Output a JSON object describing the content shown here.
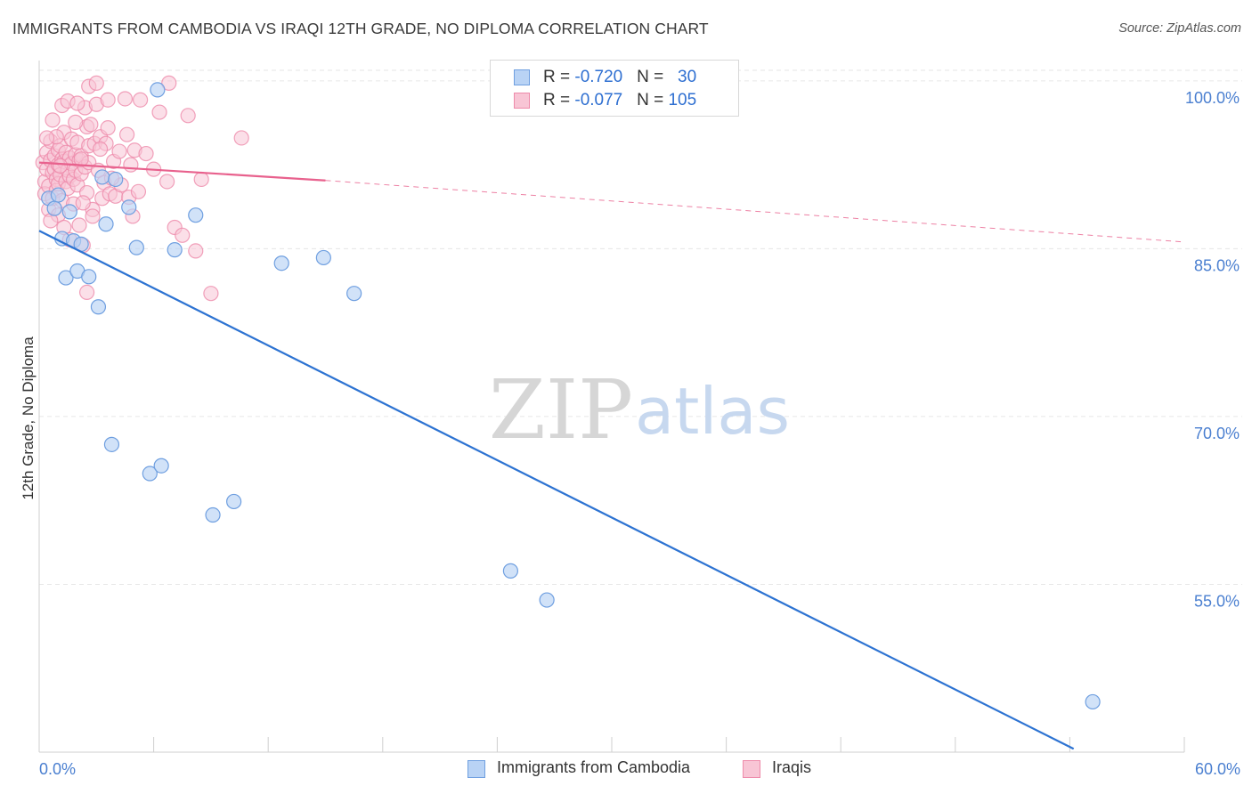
{
  "title": "IMMIGRANTS FROM CAMBODIA VS IRAQI 12TH GRADE, NO DIPLOMA CORRELATION CHART",
  "source": "Source: ZipAtlas.com",
  "watermark": {
    "zip": "ZIP",
    "atlas": "atlas"
  },
  "legend": {
    "rows": [
      {
        "r_label": "R = ",
        "r_value": "-0.720",
        "n_label": "N = ",
        "n_value": "30"
      },
      {
        "r_label": "R = ",
        "r_value": "-0.077",
        "n_label": "N = ",
        "n_value": "105"
      }
    ]
  },
  "colors": {
    "cambodia_fill": "#b9d3f5",
    "cambodia_stroke": "#6f9fe0",
    "cambodia_line": "#2d73d2",
    "iraqi_fill": "#f8c5d5",
    "iraqi_stroke": "#ee8aaa",
    "iraqi_line": "#e8618d",
    "axis_label": "#4a7fd0",
    "grid": "#e6e6e6"
  },
  "chart_data": {
    "type": "scatter",
    "title": "IMMIGRANTS FROM CAMBODIA VS IRAQI 12TH GRADE, NO DIPLOMA CORRELATION CHART",
    "xlabel": "",
    "ylabel": "12th Grade, No Diploma",
    "xlim": [
      0,
      60
    ],
    "ylim": [
      40,
      101.5
    ],
    "x_tick_labels": [
      "0.0%",
      "60.0%"
    ],
    "y_ticks": [
      55,
      70,
      85,
      100
    ],
    "y_tick_labels": [
      "55.0%",
      "70.0%",
      "85.0%",
      "100.0%"
    ],
    "grid": true,
    "legend_position": "top-center",
    "series": [
      {
        "name": "Immigrants from Cambodia",
        "points": [
          [
            0.5,
            89.5
          ],
          [
            0.8,
            88.6
          ],
          [
            1.0,
            89.8
          ],
          [
            1.2,
            85.9
          ],
          [
            1.4,
            82.4
          ],
          [
            1.6,
            88.3
          ],
          [
            1.8,
            85.7
          ],
          [
            2.0,
            83.0
          ],
          [
            2.2,
            85.4
          ],
          [
            2.6,
            82.5
          ],
          [
            3.1,
            79.8
          ],
          [
            3.3,
            91.4
          ],
          [
            3.5,
            87.2
          ],
          [
            3.8,
            67.5
          ],
          [
            4.0,
            91.2
          ],
          [
            4.7,
            88.7
          ],
          [
            5.1,
            85.1
          ],
          [
            5.8,
            64.9
          ],
          [
            6.2,
            99.2
          ],
          [
            6.4,
            65.6
          ],
          [
            7.1,
            84.9
          ],
          [
            8.2,
            88.0
          ],
          [
            9.1,
            61.2
          ],
          [
            10.2,
            62.4
          ],
          [
            12.7,
            83.7
          ],
          [
            14.9,
            84.2
          ],
          [
            16.5,
            81.0
          ],
          [
            24.7,
            56.2
          ],
          [
            26.6,
            53.6
          ],
          [
            55.2,
            44.5
          ]
        ],
        "trend": {
          "x": [
            0,
            54.2
          ],
          "y": [
            86.6,
            40.3
          ]
        }
      },
      {
        "name": "Iraqis",
        "points": [
          [
            0.2,
            92.7
          ],
          [
            0.3,
            91.0
          ],
          [
            0.3,
            89.9
          ],
          [
            0.4,
            93.6
          ],
          [
            0.4,
            92.1
          ],
          [
            0.5,
            90.6
          ],
          [
            0.5,
            88.5
          ],
          [
            0.6,
            94.6
          ],
          [
            0.6,
            92.9
          ],
          [
            0.7,
            91.8
          ],
          [
            0.7,
            89.5
          ],
          [
            0.8,
            93.3
          ],
          [
            0.8,
            92.1
          ],
          [
            0.9,
            91.2
          ],
          [
            0.9,
            90.2
          ],
          [
            1.0,
            93.8
          ],
          [
            1.0,
            92.5
          ],
          [
            1.0,
            90.8
          ],
          [
            1.1,
            94.2
          ],
          [
            1.1,
            91.6
          ],
          [
            1.2,
            93.0
          ],
          [
            1.2,
            89.3
          ],
          [
            1.3,
            95.4
          ],
          [
            1.3,
            92.8
          ],
          [
            1.4,
            91.0
          ],
          [
            1.4,
            93.6
          ],
          [
            1.5,
            92.0
          ],
          [
            1.5,
            90.4
          ],
          [
            1.6,
            93.1
          ],
          [
            1.6,
            91.5
          ],
          [
            1.7,
            94.8
          ],
          [
            1.7,
            92.6
          ],
          [
            1.8,
            91.2
          ],
          [
            1.8,
            89.0
          ],
          [
            1.9,
            93.4
          ],
          [
            1.9,
            92.0
          ],
          [
            2.0,
            94.5
          ],
          [
            2.0,
            90.7
          ],
          [
            2.1,
            92.9
          ],
          [
            2.1,
            87.1
          ],
          [
            2.2,
            93.3
          ],
          [
            2.2,
            91.7
          ],
          [
            2.3,
            85.3
          ],
          [
            2.4,
            92.3
          ],
          [
            2.4,
            97.6
          ],
          [
            2.5,
            95.9
          ],
          [
            2.5,
            90.0
          ],
          [
            2.6,
            94.2
          ],
          [
            2.6,
            92.7
          ],
          [
            2.7,
            96.1
          ],
          [
            2.8,
            88.5
          ],
          [
            2.9,
            94.4
          ],
          [
            3.0,
            97.9
          ],
          [
            3.1,
            92.0
          ],
          [
            3.2,
            95.0
          ],
          [
            3.3,
            89.5
          ],
          [
            3.4,
            90.9
          ],
          [
            3.5,
            94.4
          ],
          [
            3.6,
            98.3
          ],
          [
            3.7,
            89.9
          ],
          [
            3.9,
            92.8
          ],
          [
            4.0,
            89.7
          ],
          [
            4.2,
            93.7
          ],
          [
            4.3,
            90.7
          ],
          [
            4.5,
            98.4
          ],
          [
            4.7,
            89.6
          ],
          [
            4.9,
            87.9
          ],
          [
            5.0,
            93.8
          ],
          [
            5.3,
            98.3
          ],
          [
            5.6,
            93.5
          ],
          [
            6.0,
            92.1
          ],
          [
            6.3,
            97.2
          ],
          [
            6.7,
            91.0
          ],
          [
            7.1,
            86.9
          ],
          [
            7.5,
            86.2
          ],
          [
            7.8,
            96.9
          ],
          [
            8.2,
            84.8
          ],
          [
            8.5,
            91.2
          ],
          [
            9.0,
            81.0
          ],
          [
            10.6,
            94.9
          ],
          [
            2.5,
            81.1
          ],
          [
            1.2,
            97.8
          ],
          [
            1.5,
            98.2
          ],
          [
            2.0,
            98.0
          ],
          [
            2.6,
            99.5
          ],
          [
            3.0,
            99.8
          ],
          [
            1.9,
            96.3
          ],
          [
            3.6,
            95.8
          ],
          [
            0.9,
            95.0
          ],
          [
            0.7,
            96.5
          ],
          [
            2.3,
            89.1
          ],
          [
            3.8,
            91.3
          ],
          [
            4.6,
            95.2
          ],
          [
            5.2,
            90.1
          ],
          [
            6.8,
            99.8
          ],
          [
            1.0,
            88.0
          ],
          [
            1.3,
            86.9
          ],
          [
            2.8,
            87.9
          ],
          [
            0.6,
            87.5
          ],
          [
            1.6,
            85.8
          ],
          [
            3.2,
            93.9
          ],
          [
            4.8,
            92.5
          ],
          [
            0.4,
            94.9
          ],
          [
            2.2,
            93.0
          ],
          [
            1.1,
            92.4
          ]
        ],
        "trend": {
          "x": [
            0,
            15
          ],
          "y": [
            92.7,
            91.1
          ]
        },
        "trend_ext": {
          "x": [
            15,
            60
          ],
          "y": [
            91.1,
            85.6
          ]
        }
      }
    ]
  },
  "bottom_legend": [
    {
      "label": "Immigrants from Cambodia"
    },
    {
      "label": "Iraqis"
    }
  ]
}
